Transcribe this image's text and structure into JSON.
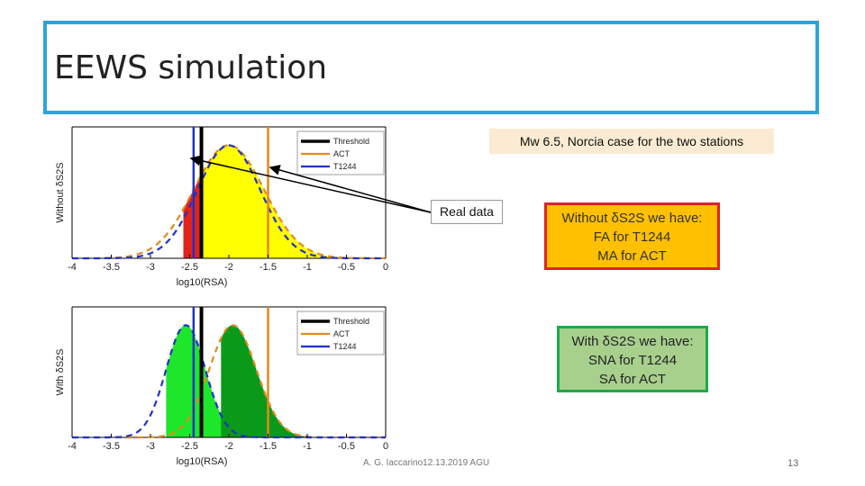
{
  "slide": {
    "title": "EEWS simulation",
    "caption": "Mw 6.5, Norcia case for the two stations",
    "callout": "Real data",
    "box_without": [
      "Without δS2S we have:",
      "FA for T1244",
      "MA for ACT"
    ],
    "box_with": [
      "With δS2S we have:",
      "SNA for T1244",
      "SA for ACT"
    ],
    "footer": "A. G. Iaccarino12.13.2019 AGU",
    "page": "13"
  },
  "colors": {
    "title_border": "#2ea3d9",
    "threshold": "#000000",
    "act": "#e08a1e",
    "t1244": "#1f32c8",
    "yellow_fill": "#ffff00",
    "red_fill": "#e0231b",
    "light_green_fill": "#1ee62a",
    "dark_green_fill": "#0a9a1a"
  },
  "chart_data": [
    {
      "type": "line",
      "ylabel": "Without δS2S",
      "xlabel": "log10(RSA)",
      "xlim": [
        -4,
        0
      ],
      "xticks": [
        "-4",
        "-3.5",
        "-3",
        "-2.5",
        "-2",
        "-1.5",
        "-1",
        "-0.5",
        "0"
      ],
      "legend": [
        "Threshold",
        "ACT",
        "T1244"
      ],
      "legend_position": "top-right",
      "threshold_x": -2.35,
      "act_x": -1.5,
      "t1244_x": -2.45,
      "act_distribution": {
        "mean": -2.0,
        "sd": 0.45
      },
      "t1244_distribution": {
        "mean": -2.0,
        "sd": 0.4
      }
    },
    {
      "type": "line",
      "ylabel": "With δS2S",
      "xlabel": "log10(RSA)",
      "xlim": [
        -4,
        0
      ],
      "xticks": [
        "-4",
        "-3.5",
        "-3",
        "-2.5",
        "-2",
        "-1.5",
        "-1",
        "-0.5",
        "0"
      ],
      "legend": [
        "Threshold",
        "ACT",
        "T1244"
      ],
      "legend_position": "top-right",
      "threshold_x": -2.35,
      "act_x": -1.5,
      "t1244_x": -2.45,
      "act_distribution": {
        "mean": -1.95,
        "sd": 0.3
      },
      "t1244_distribution": {
        "mean": -2.55,
        "sd": 0.25
      }
    }
  ]
}
